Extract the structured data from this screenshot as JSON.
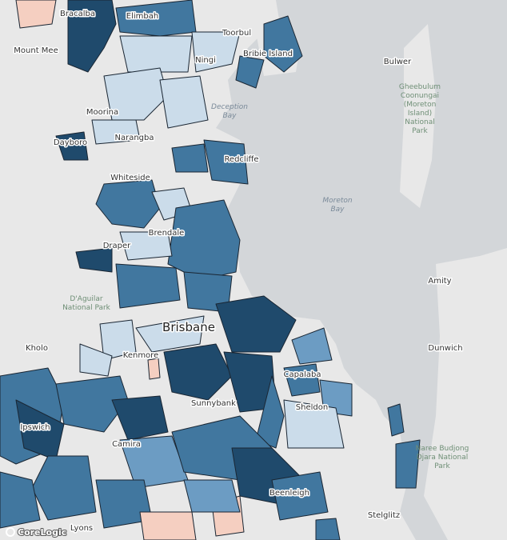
{
  "map": {
    "labels": [
      "Bracalba",
      "Elimbah",
      "Toorbul",
      "Mount Mee",
      "Bribie Island",
      "Ningi",
      "Bulwer",
      "Moorina",
      "Narangba",
      "Dayboro",
      "Whiteside",
      "Redcliffe",
      "Brendale",
      "Draper",
      "Amity",
      "Brisbane",
      "Kholo",
      "Kenmore",
      "Dunwich",
      "Capalaba",
      "Sunnybank",
      "Sheldon",
      "Camira",
      "Ipswich",
      "Beenleigh",
      "Stelglitz",
      "Lyons"
    ],
    "water_labels": [
      "Deception",
      "Bay",
      "Moreton",
      "Bay"
    ],
    "park_labels": [
      "Gheebulum",
      "Coonungai",
      "(Moreton",
      "Island)",
      "National",
      "Park",
      "D'Aguilar",
      "National Park",
      "Naree Budjong",
      "Djara National",
      "Park"
    ],
    "attribution": "CoreLogic"
  }
}
